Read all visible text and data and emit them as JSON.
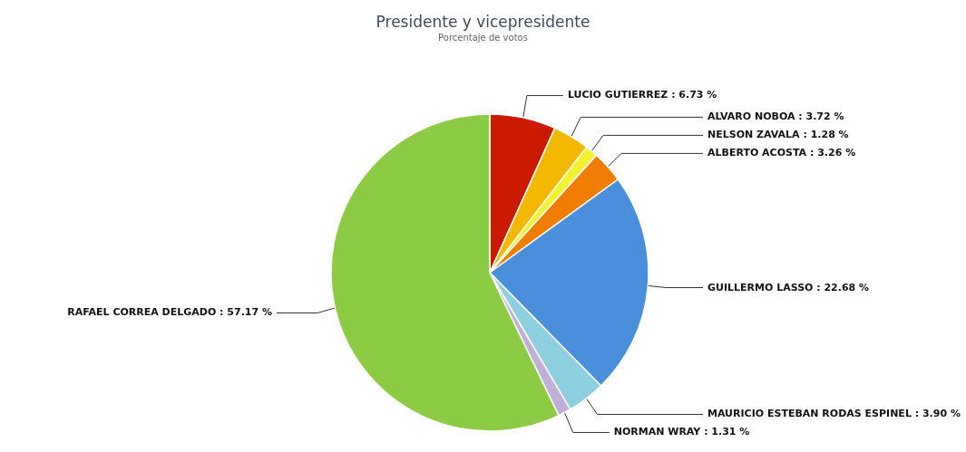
{
  "chart_data": {
    "type": "pie",
    "title": "Presidente y vicepresidente",
    "subtitle": "Porcentaje de votos",
    "categories": [
      "LUCIO GUTIERREZ",
      "ALVARO NOBOA",
      "NELSON ZAVALA",
      "ALBERTO ACOSTA",
      "GUILLERMO LASSO",
      "MAURICIO ESTEBAN RODAS ESPINEL",
      "NORMAN WRAY",
      "RAFAEL CORREA DELGADO"
    ],
    "values": [
      6.73,
      3.72,
      1.28,
      3.26,
      22.68,
      3.9,
      1.31,
      57.17
    ],
    "value_labels": [
      "6.73 %",
      "3.72 %",
      "1.28 %",
      "3.26 %",
      "22.68 %",
      "3.90 %",
      "1.31 %",
      "57.17 %"
    ],
    "colors": [
      "#cc1a00",
      "#f5b800",
      "#f2f230",
      "#f07c00",
      "#4a8fdb",
      "#8fd0e0",
      "#c0b0d8",
      "#8ccc44"
    ]
  }
}
